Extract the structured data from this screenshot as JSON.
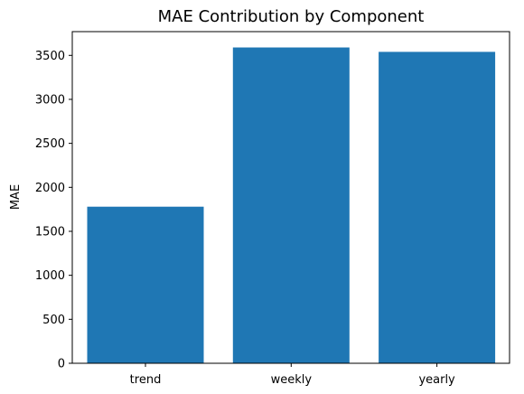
{
  "chart_data": {
    "type": "bar",
    "title": "MAE Contribution by Component",
    "xlabel": "",
    "ylabel": "MAE",
    "categories": [
      "trend",
      "weekly",
      "yearly"
    ],
    "values": [
      1780,
      3590,
      3540
    ],
    "yticks": [
      0,
      500,
      1000,
      1500,
      2000,
      2500,
      3000,
      3500
    ],
    "ylim": [
      0,
      3770
    ],
    "grid": false,
    "bar_color": "#1f77b4"
  }
}
